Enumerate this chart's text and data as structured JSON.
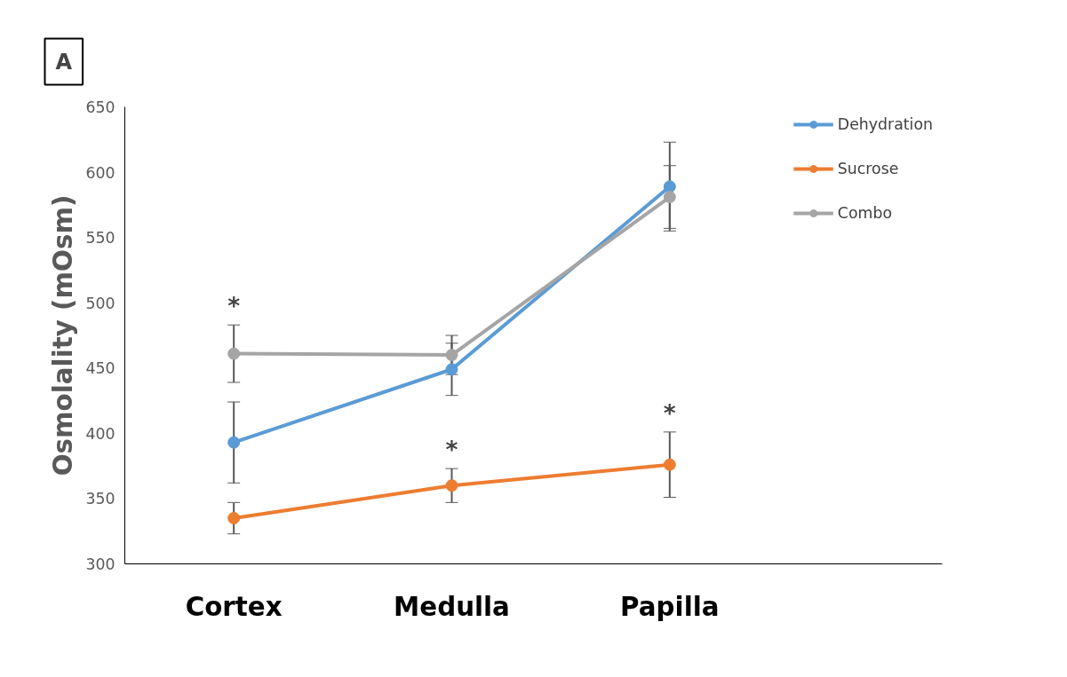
{
  "chart_data": {
    "type": "line",
    "ylabel": "Osmolality (mOsm)",
    "categories": [
      "Cortex",
      "Medulla",
      "Papilla"
    ],
    "series": [
      {
        "name": "Dehydration",
        "color": "#5b9bd5",
        "values": [
          393,
          449,
          589
        ],
        "errors": [
          31,
          20,
          34
        ]
      },
      {
        "name": "Sucrose",
        "color": "#ed7d31",
        "values": [
          335,
          360,
          376
        ],
        "errors": [
          12,
          13,
          25
        ]
      },
      {
        "name": "Combo",
        "color": "#a5a5a5",
        "values": [
          461,
          460,
          581
        ],
        "errors": [
          22,
          15,
          24
        ]
      }
    ],
    "ylim": [
      300,
      650
    ],
    "yticks": [
      300,
      350,
      400,
      450,
      500,
      550,
      600,
      650
    ],
    "grid": false,
    "legend": "top right",
    "marker": "circle",
    "line_style": "solid",
    "annotations": [
      "A",
      {
        "text": "*",
        "x": "Cortex",
        "y": 483
      },
      {
        "text": "*",
        "x": "Medulla",
        "y": 373
      },
      {
        "text": "*",
        "x": "Papilla",
        "y": 401
      }
    ]
  }
}
